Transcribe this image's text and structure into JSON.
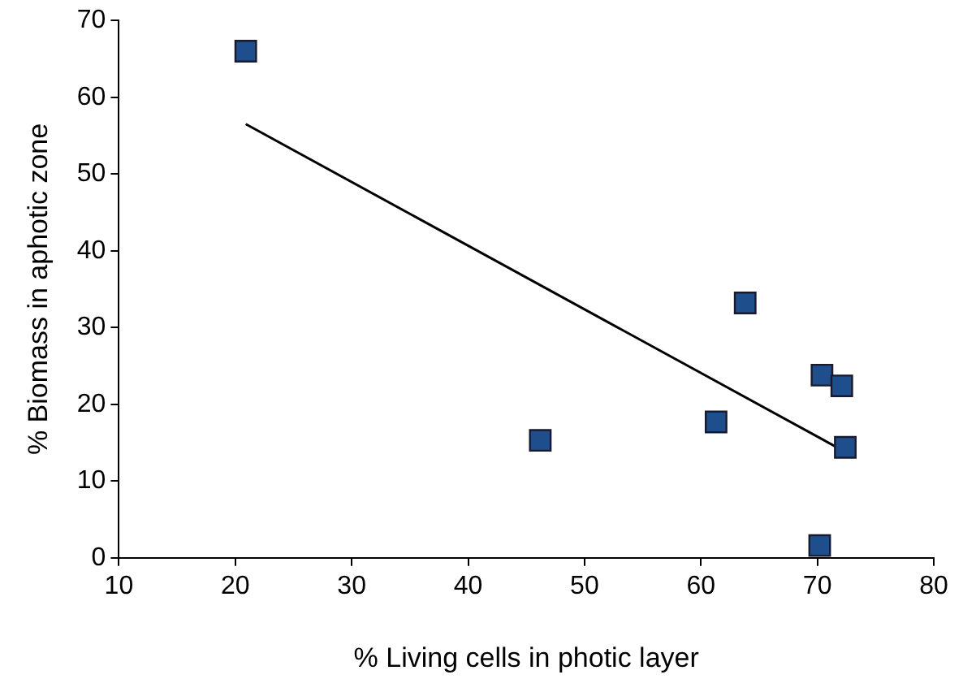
{
  "chart_data": {
    "type": "scatter",
    "xlabel": "% Living cells in photic layer",
    "ylabel": "% Biomass in aphotic zone",
    "xlim": [
      10,
      80
    ],
    "xticks": [
      10,
      20,
      30,
      40,
      50,
      60,
      70,
      80
    ],
    "ylim": [
      0,
      70
    ],
    "yticks": [
      0,
      10,
      20,
      30,
      40,
      50,
      60,
      70
    ],
    "grid": false,
    "legend": false,
    "marker": "square",
    "series": [
      {
        "color": "#1f4e8c",
        "x": [
          20.9,
          46.2,
          61.3,
          63.8,
          70.4,
          72.1,
          72.4,
          70.2
        ],
        "values": [
          66.0,
          15.3,
          17.7,
          33.2,
          23.8,
          22.4,
          14.4,
          1.6
        ]
      },
      {
        "type": "line",
        "marker": "none",
        "color": "#000000",
        "x": [
          20.9,
          72.4
        ],
        "values": [
          56.5,
          13.8
        ]
      }
    ]
  }
}
